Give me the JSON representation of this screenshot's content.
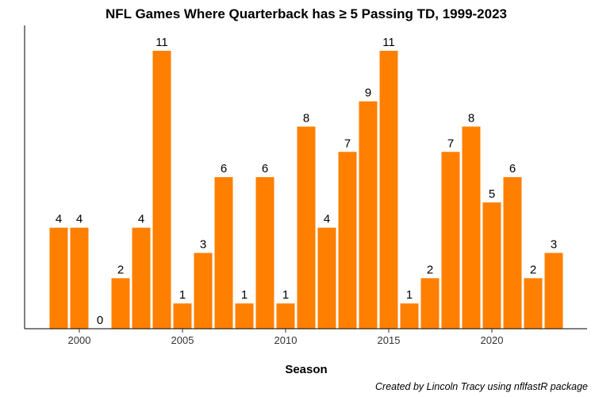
{
  "chart_data": {
    "type": "bar",
    "title": "NFL Games Where Quarterback has ≥ 5 Passing TD, 1999-2023",
    "xlabel": "Season",
    "ylabel": "",
    "caption": "Created by Lincoln Tracy using nflfastR package",
    "categories": [
      1999,
      2000,
      2001,
      2002,
      2003,
      2004,
      2005,
      2006,
      2007,
      2008,
      2009,
      2010,
      2011,
      2012,
      2013,
      2014,
      2015,
      2016,
      2017,
      2018,
      2019,
      2020,
      2021,
      2022,
      2023
    ],
    "values": [
      4,
      4,
      0,
      2,
      4,
      11,
      1,
      3,
      6,
      1,
      6,
      1,
      8,
      4,
      7,
      9,
      11,
      1,
      2,
      7,
      8,
      5,
      6,
      2,
      3
    ],
    "xticks": [
      "2000",
      "2005",
      "2010",
      "2015",
      "2020"
    ],
    "ylim": [
      0,
      11.5
    ],
    "bar_color": "#FF7F00",
    "grid": false
  }
}
